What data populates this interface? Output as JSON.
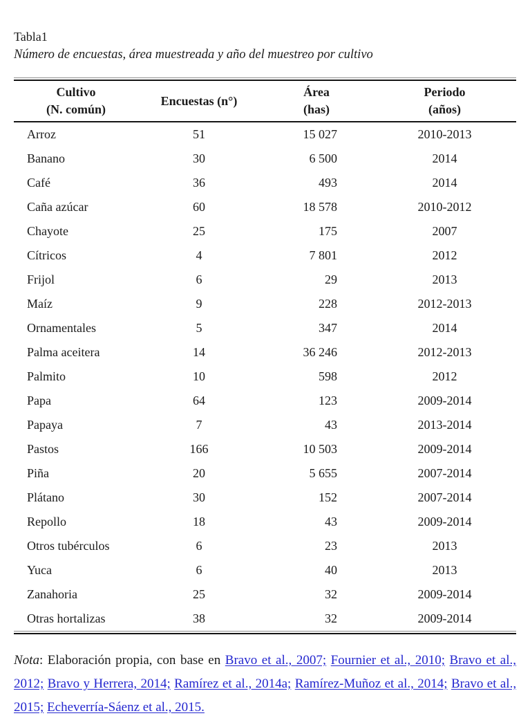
{
  "title": {
    "label": "Tabla1",
    "caption": "Número de encuestas, área muestreada y año del muestreo por cultivo"
  },
  "table": {
    "headers": [
      {
        "line1": "Cultivo",
        "line2": "(N. común)"
      },
      {
        "line1": "Encuestas (n°)",
        "line2": ""
      },
      {
        "line1": "Área",
        "line2": "(has)"
      },
      {
        "line1": "Periodo",
        "line2": "(años)"
      }
    ],
    "rows": [
      {
        "cultivo": "Arroz",
        "encuestas": "51",
        "area": "15 027",
        "periodo": "2010-2013"
      },
      {
        "cultivo": "Banano",
        "encuestas": "30",
        "area": "6 500",
        "periodo": "2014"
      },
      {
        "cultivo": "Café",
        "encuestas": "36",
        "area": "493",
        "periodo": "2014"
      },
      {
        "cultivo": "Caña azúcar",
        "encuestas": "60",
        "area": "18 578",
        "periodo": "2010-2012"
      },
      {
        "cultivo": "Chayote",
        "encuestas": "25",
        "area": "175",
        "periodo": "2007"
      },
      {
        "cultivo": "Cítricos",
        "encuestas": "4",
        "area": "7 801",
        "periodo": "2012"
      },
      {
        "cultivo": "Frijol",
        "encuestas": "6",
        "area": "29",
        "periodo": "2013"
      },
      {
        "cultivo": "Maíz",
        "encuestas": "9",
        "area": "228",
        "periodo": "2012-2013"
      },
      {
        "cultivo": "Ornamentales",
        "encuestas": "5",
        "area": "347",
        "periodo": "2014"
      },
      {
        "cultivo": "Palma aceitera",
        "encuestas": "14",
        "area": "36 246",
        "periodo": "2012-2013"
      },
      {
        "cultivo": "Palmito",
        "encuestas": "10",
        "area": "598",
        "periodo": "2012"
      },
      {
        "cultivo": "Papa",
        "encuestas": "64",
        "area": "123",
        "periodo": "2009-2014"
      },
      {
        "cultivo": "Papaya",
        "encuestas": "7",
        "area": "43",
        "periodo": "2013-2014"
      },
      {
        "cultivo": "Pastos",
        "encuestas": "166",
        "area": "10 503",
        "periodo": "2009-2014"
      },
      {
        "cultivo": "Piña",
        "encuestas": "20",
        "area": "5 655",
        "periodo": "2007-2014"
      },
      {
        "cultivo": "Plátano",
        "encuestas": "30",
        "area": "152",
        "periodo": "2007-2014"
      },
      {
        "cultivo": "Repollo",
        "encuestas": "18",
        "area": "43",
        "periodo": "2009-2014"
      },
      {
        "cultivo": "Otros tubérculos",
        "encuestas": "6",
        "area": "23",
        "periodo": "2013"
      },
      {
        "cultivo": "Yuca",
        "encuestas": "6",
        "area": "40",
        "periodo": "2013"
      },
      {
        "cultivo": "Zanahoria",
        "encuestas": "25",
        "area": "32",
        "periodo": "2009-2014"
      },
      {
        "cultivo": "Otras hortalizas",
        "encuestas": "38",
        "area": "32",
        "periodo": "2009-2014"
      }
    ]
  },
  "note": {
    "label": "Nota",
    "prefix": ": Elaboración propia, con base en ",
    "links": [
      "Bravo et al., 2007;",
      "Fournier et al., 2010;",
      "Bravo et al., 2012;",
      "Bravo y Herrera, 2014;",
      "Ramírez et al., 2014a;",
      "Ramírez-Muñoz et al., 2014;",
      "Bravo et al., 2015;",
      "Echeverría-Sáenz et al., 2015."
    ],
    "link_color": "#2427cf"
  }
}
